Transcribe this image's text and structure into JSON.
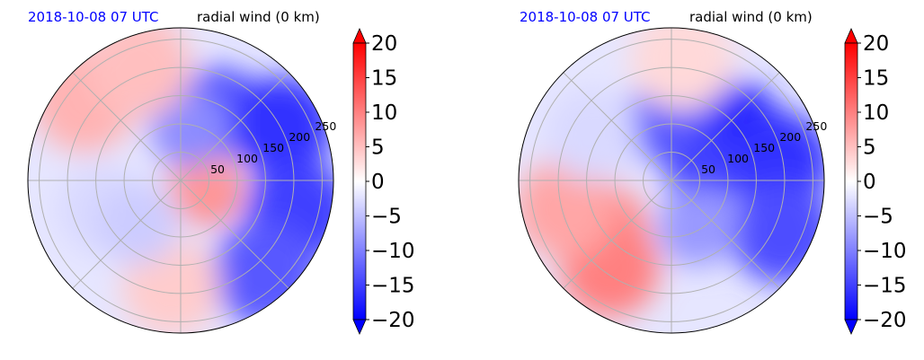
{
  "chart_data": [
    {
      "type": "heatmap",
      "projection": "polar",
      "date_label": "2018-10-08 07 UTC",
      "title": "radial wind (0 km)",
      "date_color": "#0000ff",
      "rlim": [
        0,
        270
      ],
      "radial_ticks": [
        50,
        100,
        150,
        200,
        250
      ],
      "angular_grid_deg": 45,
      "grid": true,
      "colorbar": {
        "ticks": [
          "20",
          "15",
          "10",
          "5",
          "0",
          "−5",
          "−10",
          "−15",
          "−20"
        ],
        "range": [
          -20,
          20
        ],
        "extend": "both",
        "colormap": "bwr"
      },
      "field_features": [
        {
          "r": 0.18,
          "theta_deg": 345,
          "value": 12
        },
        {
          "r": 0.15,
          "theta_deg": 5,
          "value": 8
        },
        {
          "r": 0.52,
          "theta_deg": 60,
          "value": -14
        },
        {
          "r": 0.75,
          "theta_deg": 28,
          "value": -16
        },
        {
          "r": 0.8,
          "theta_deg": 345,
          "value": -15
        },
        {
          "r": 0.82,
          "theta_deg": 312,
          "value": -13
        },
        {
          "r": 0.35,
          "theta_deg": 80,
          "value": -9
        },
        {
          "r": 0.82,
          "theta_deg": 140,
          "value": 6
        },
        {
          "r": 0.8,
          "theta_deg": 110,
          "value": 5
        },
        {
          "r": 0.7,
          "theta_deg": 265,
          "value": 4
        },
        {
          "r": 0.55,
          "theta_deg": 200,
          "value": -3
        },
        {
          "r": 0.4,
          "theta_deg": 225,
          "value": -4
        }
      ]
    },
    {
      "type": "heatmap",
      "projection": "polar",
      "date_label": "2018-10-08 07 UTC",
      "title": "radial wind (0 km)",
      "date_color": "#0000ff",
      "rlim": [
        0,
        270
      ],
      "radial_ticks": [
        50,
        100,
        150,
        200,
        250
      ],
      "angular_grid_deg": 45,
      "grid": true,
      "colorbar": {
        "ticks": [
          "20",
          "15",
          "10",
          "5",
          "0",
          "−5",
          "−10",
          "−15",
          "−20"
        ],
        "range": [
          -20,
          20
        ],
        "extend": "both",
        "colormap": "bwr"
      },
      "field_features": [
        {
          "r": 0.55,
          "theta_deg": 40,
          "value": -17
        },
        {
          "r": 0.72,
          "theta_deg": 10,
          "value": -16
        },
        {
          "r": 0.38,
          "theta_deg": 95,
          "value": -13
        },
        {
          "r": 0.8,
          "theta_deg": 335,
          "value": -14
        },
        {
          "r": 0.22,
          "theta_deg": 10,
          "value": -15
        },
        {
          "r": 0.55,
          "theta_deg": 215,
          "value": 9
        },
        {
          "r": 0.7,
          "theta_deg": 235,
          "value": 10
        },
        {
          "r": 0.72,
          "theta_deg": 195,
          "value": 7
        },
        {
          "r": 0.8,
          "theta_deg": 85,
          "value": 3
        },
        {
          "r": 0.6,
          "theta_deg": 150,
          "value": -3
        },
        {
          "r": 0.35,
          "theta_deg": 300,
          "value": -8
        }
      ]
    }
  ]
}
